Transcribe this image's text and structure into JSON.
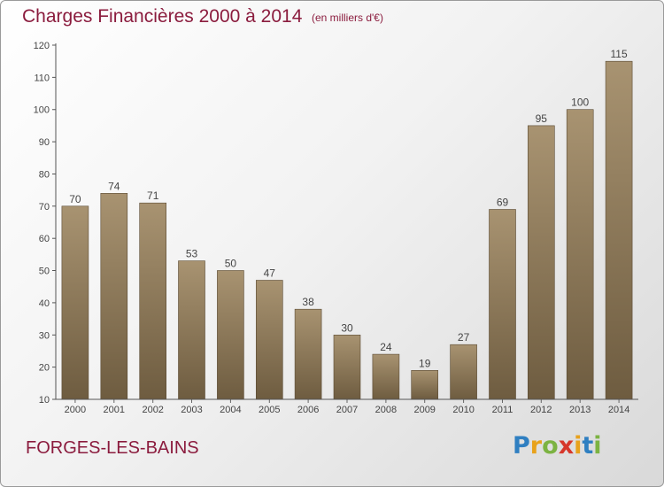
{
  "header": {
    "title": "Charges Financières 2000 à 2014",
    "unit_note": "(en milliers d'€)"
  },
  "footer": {
    "city": "FORGES-LES-BAINS",
    "logo_letters": [
      "P",
      "r",
      "o",
      "x",
      "i",
      "t",
      "i"
    ]
  },
  "colors": {
    "title": "#8b1c3e",
    "bar_top": "#a89371",
    "bar_bottom": "#6e5c40",
    "logo": [
      "#2f7fc1",
      "#e8a21c",
      "#7cb342",
      "#d6372b",
      "#e8a21c",
      "#2f7fc1",
      "#7cb342"
    ]
  },
  "chart_data": {
    "type": "bar",
    "title": "Charges Financières 2000 à 2014",
    "subtitle": "(en milliers d'€)",
    "categories": [
      "2000",
      "2001",
      "2002",
      "2003",
      "2004",
      "2005",
      "2006",
      "2007",
      "2008",
      "2009",
      "2010",
      "2011",
      "2012",
      "2013",
      "2014"
    ],
    "values": [
      70,
      74,
      71,
      53,
      50,
      47,
      38,
      30,
      24,
      19,
      27,
      69,
      95,
      100,
      115
    ],
    "ylim": [
      10,
      120
    ],
    "yticks": [
      10,
      20,
      30,
      40,
      50,
      60,
      70,
      80,
      90,
      100,
      110,
      120
    ],
    "grid": false,
    "data_labels": true
  }
}
